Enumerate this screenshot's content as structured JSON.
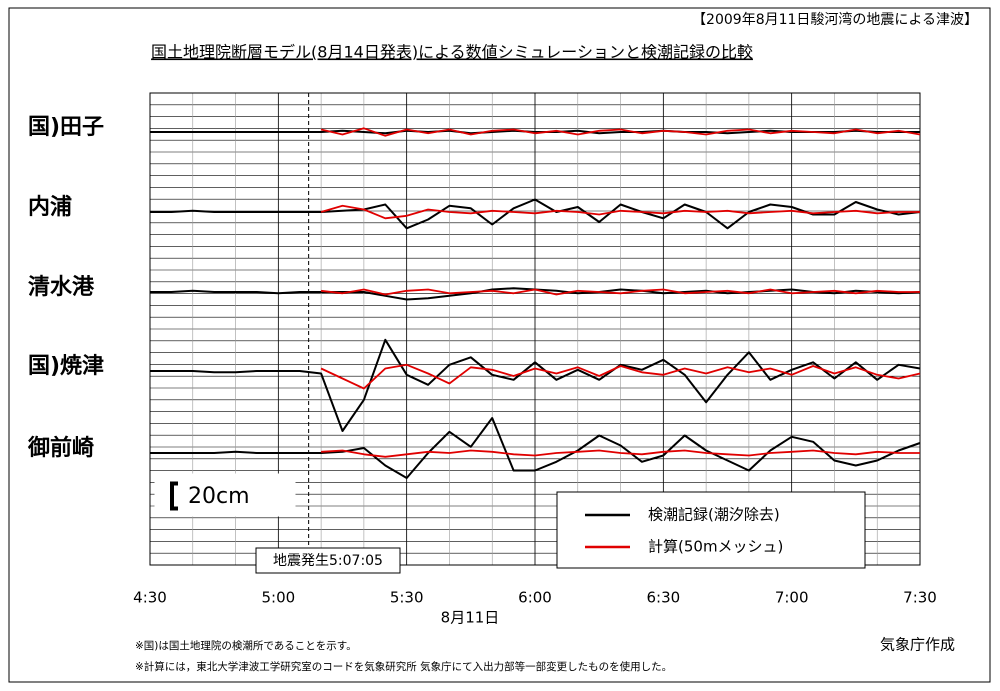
{
  "chart_data": {
    "type": "line",
    "header": "【2009年8月11日駿河湾の地震による津波】",
    "title": "国土地理院断層モデル(8月14日発表)による数値シミュレーションと検潮記録の比較",
    "x_label": "8月11日",
    "credit": "気象庁作成",
    "notes": [
      "※国)は国土地理院の検潮所であることを示す。",
      "※計算には，東北大学津波工学研究室のコードを気象研究所 気象庁にて入出力部等一部変更したものを使用した。"
    ],
    "event": {
      "label": "地震発生5:07:05",
      "x": "5:07:05"
    },
    "scale_bar": {
      "value": 20,
      "label": "20cm"
    },
    "xlim": [
      "4:30",
      "7:30"
    ],
    "xticks": [
      "4:30",
      "5:00",
      "5:30",
      "6:00",
      "6:30",
      "7:00",
      "7:30"
    ],
    "legend": [
      "検潮記録(潮汐除去)",
      "計算(50mメッシュ)"
    ],
    "x": [
      "4:30",
      "4:35",
      "4:40",
      "4:45",
      "4:50",
      "4:55",
      "5:00",
      "5:05",
      "5:10",
      "5:15",
      "5:20",
      "5:25",
      "5:30",
      "5:35",
      "5:40",
      "5:45",
      "5:50",
      "5:55",
      "6:00",
      "6:05",
      "6:10",
      "6:15",
      "6:20",
      "6:25",
      "6:30",
      "6:35",
      "6:40",
      "6:45",
      "6:50",
      "6:55",
      "7:00",
      "7:05",
      "7:10",
      "7:15",
      "7:20",
      "7:25",
      "7:30"
    ],
    "stations": [
      {
        "name": "国)田子",
        "series": [
          {
            "name": "検潮記録(潮汐除去)",
            "color": "#000000",
            "values": [
              0,
              0,
              0,
              0,
              0,
              0,
              0,
              0,
              0,
              1,
              0,
              -1,
              1,
              0,
              1,
              -1,
              0,
              1,
              0,
              0,
              1,
              -1,
              0,
              0,
              1,
              0,
              0,
              -1,
              0,
              1,
              0,
              0,
              0,
              1,
              0,
              0,
              0
            ]
          },
          {
            "name": "計算(50mメッシュ)",
            "color": "#e00000",
            "values": [
              null,
              null,
              null,
              null,
              null,
              null,
              null,
              null,
              2,
              -2,
              3,
              -3,
              2,
              -1,
              2,
              -2,
              1,
              2,
              -1,
              1,
              -2,
              1,
              2,
              -1,
              1,
              0,
              -2,
              1,
              2,
              -1,
              1,
              0,
              -1,
              2,
              -1,
              1,
              -2
            ]
          }
        ]
      },
      {
        "name": "内浦",
        "series": [
          {
            "name": "検潮記録(潮汐除去)",
            "color": "#000000",
            "values": [
              0,
              0,
              1,
              0,
              0,
              0,
              0,
              0,
              0,
              1,
              2,
              6,
              -13,
              -6,
              5,
              3,
              -10,
              3,
              10,
              0,
              4,
              -8,
              6,
              0,
              -5,
              6,
              0,
              -13,
              0,
              6,
              4,
              -2,
              -2,
              8,
              2,
              -2,
              0
            ]
          },
          {
            "name": "計算(50mメッシュ)",
            "color": "#e00000",
            "values": [
              null,
              null,
              null,
              null,
              null,
              null,
              null,
              null,
              0,
              5,
              2,
              -5,
              -3,
              2,
              0,
              -1,
              1,
              0,
              -1,
              1,
              0,
              -2,
              1,
              0,
              -1,
              1,
              0,
              1,
              -1,
              0,
              1,
              -1,
              0,
              1,
              -1,
              0,
              0
            ]
          }
        ]
      },
      {
        "name": "清水港",
        "series": [
          {
            "name": "検潮記録(潮汐除去)",
            "color": "#000000",
            "values": [
              0,
              0,
              1,
              0,
              0,
              0,
              -1,
              0,
              0,
              0,
              0,
              -3,
              -6,
              -5,
              -3,
              -1,
              2,
              3,
              2,
              1,
              -1,
              0,
              2,
              1,
              -1,
              0,
              1,
              -1,
              0,
              1,
              2,
              0,
              -1,
              1,
              0,
              -1,
              0
            ]
          },
          {
            "name": "計算(50mメッシュ)",
            "color": "#e00000",
            "values": [
              null,
              null,
              null,
              null,
              null,
              null,
              null,
              null,
              1,
              -1,
              2,
              -2,
              1,
              2,
              -1,
              0,
              1,
              -1,
              2,
              -2,
              1,
              0,
              -1,
              1,
              2,
              -1,
              0,
              1,
              -1,
              2,
              -1,
              0,
              1,
              -1,
              1,
              0,
              0
            ]
          }
        ]
      },
      {
        "name": "国)焼津",
        "series": [
          {
            "name": "検潮記録(潮汐除去)",
            "color": "#000000",
            "values": [
              0,
              0,
              0,
              -1,
              -1,
              0,
              0,
              0,
              -2,
              -48,
              -23,
              25,
              -3,
              -11,
              5,
              11,
              -3,
              -7,
              7,
              -7,
              1,
              -7,
              5,
              1,
              9,
              -3,
              -25,
              -3,
              15,
              -7,
              1,
              7,
              -6,
              7,
              -7,
              5,
              2
            ]
          },
          {
            "name": "計算(50mメッシュ)",
            "color": "#e00000",
            "values": [
              null,
              null,
              null,
              null,
              null,
              null,
              null,
              null,
              2,
              -6,
              -14,
              2,
              5,
              -2,
              -10,
              3,
              1,
              -4,
              2,
              -2,
              3,
              -4,
              4,
              -1,
              -3,
              2,
              -2,
              3,
              -1,
              2,
              -3,
              4,
              -2,
              3,
              -3,
              -6,
              -2
            ]
          }
        ]
      },
      {
        "name": "御前崎",
        "series": [
          {
            "name": "検潮記録(潮汐除去)",
            "color": "#000000",
            "values": [
              0,
              0,
              0,
              0,
              1,
              0,
              0,
              0,
              0,
              1,
              4,
              -10,
              -20,
              0,
              17,
              5,
              28,
              -14,
              -14,
              -7,
              2,
              14,
              6,
              -7,
              -2,
              14,
              2,
              -6,
              -14,
              2,
              13,
              9,
              -6,
              -10,
              -6,
              2,
              8
            ]
          },
          {
            "name": "計算(50mメッシュ)",
            "color": "#e00000",
            "values": [
              null,
              null,
              null,
              null,
              null,
              null,
              null,
              null,
              1,
              2,
              -1,
              -3,
              -1,
              1,
              0,
              2,
              1,
              -1,
              -2,
              0,
              1,
              2,
              0,
              -1,
              1,
              2,
              0,
              -1,
              -2,
              0,
              1,
              2,
              0,
              -1,
              1,
              0,
              0
            ]
          }
        ]
      }
    ]
  }
}
